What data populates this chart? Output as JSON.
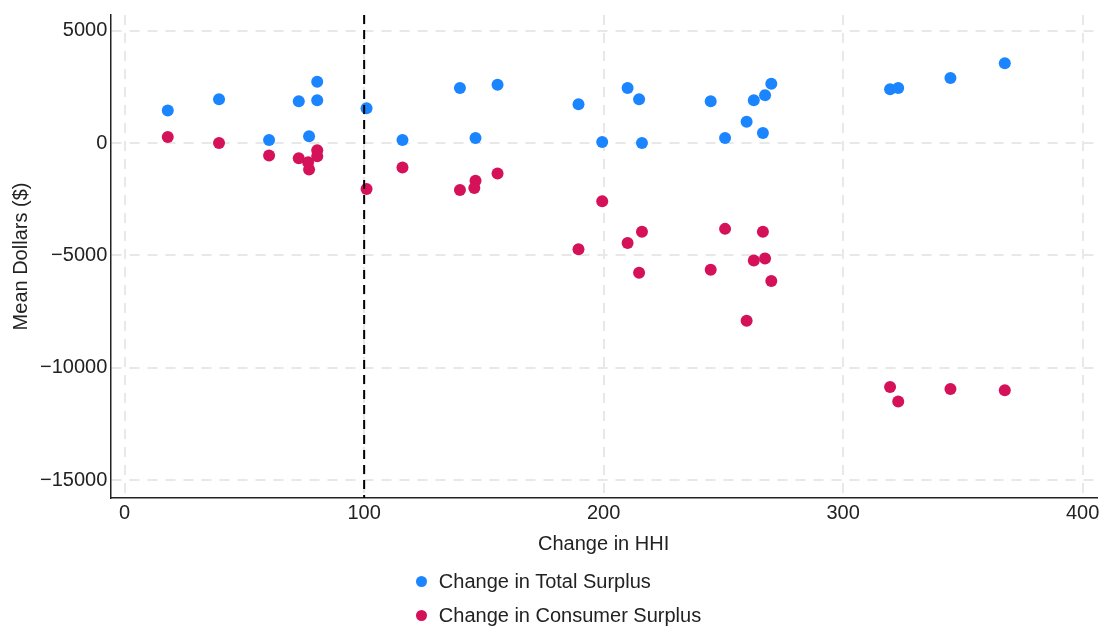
{
  "chart_data": {
    "type": "scatter",
    "xlabel": "Change in HHI",
    "ylabel": "Mean Dollars ($)",
    "xlim": [
      -6,
      406
    ],
    "xticks": [
      0,
      100,
      200,
      300,
      400
    ],
    "ylim": [
      -15800,
      5700
    ],
    "yticks": [
      {
        "value": -15000,
        "label": "−15000"
      },
      {
        "value": -10000,
        "label": "−10000"
      },
      {
        "value": -5000,
        "label": "−5000"
      },
      0,
      5000
    ],
    "grid": true,
    "legend": "bottom",
    "marker": "circle",
    "ref_lines": [
      {
        "axis": "x",
        "value": 100,
        "color": "#000000",
        "line_style": "dashed"
      }
    ],
    "series": [
      {
        "name": "Change in Total Surplus",
        "color": "#1a85ff",
        "x": [
          18,
          39.4,
          60.3,
          72.7,
          76.6,
          77,
          80.4,
          80.4,
          101,
          116,
          140,
          146,
          146.5,
          155.7,
          189.5,
          199.4,
          210,
          214.8,
          216,
          244.7,
          250.7,
          259.7,
          262.7,
          267.4,
          266.5,
          270,
          319.6,
          323,
          344.8,
          367.5
        ],
        "values": [
          1450,
          1950,
          140,
          1860,
          null,
          300,
          2730,
          1900,
          1550,
          140,
          2450,
          null,
          230,
          2600,
          1730,
          50,
          2450,
          1950,
          0,
          1860,
          230,
          950,
          1900,
          2130,
          450,
          2640,
          2400,
          2450,
          2900,
          3550
        ]
      },
      {
        "name": "Change in Consumer Surplus",
        "color": "#d41159",
        "x": [
          18,
          39.4,
          60.3,
          72.7,
          76.6,
          77,
          80.4,
          80.4,
          101,
          116,
          140,
          146.5,
          146,
          155.7,
          189.5,
          199.4,
          210,
          214.8,
          216,
          244.7,
          250.7,
          259.7,
          262.7,
          267.4,
          266.5,
          270,
          319.6,
          323,
          344.8,
          367.5
        ],
        "values": [
          270,
          0,
          -550,
          -680,
          -860,
          -1180,
          -320,
          -590,
          -2050,
          -1090,
          -2090,
          -1680,
          -2000,
          -1360,
          -4730,
          -2590,
          -4450,
          -5770,
          -3950,
          -5640,
          -3820,
          -7910,
          -5230,
          -5140,
          -3950,
          -6140,
          -10860,
          -11500,
          -10950,
          -11000
        ]
      }
    ]
  }
}
